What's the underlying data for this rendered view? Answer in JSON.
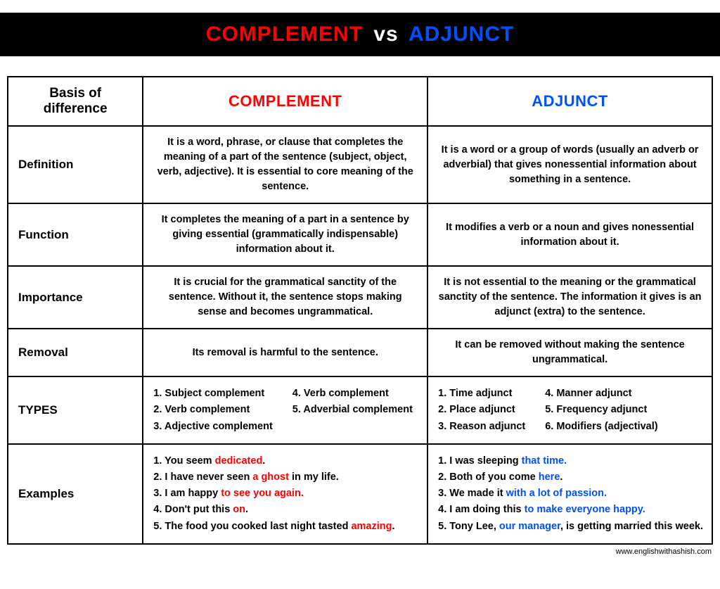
{
  "colors": {
    "red": "#ff0000",
    "blue": "#0050ff",
    "black": "#000000",
    "white": "#ffffff"
  },
  "header": {
    "complement": "COMPLEMENT",
    "vs": "vs",
    "adjunct": "ADJUNCT"
  },
  "table": {
    "head": {
      "basis": "Basis of difference",
      "complement": "COMPLEMENT",
      "adjunct": "ADJUNCT"
    },
    "rows": {
      "definition": {
        "label": "Definition",
        "complement": "It is a word, phrase, or clause that completes the meaning of a part of the sentence (subject, object, verb, adjective). It is essential to core meaning of the sentence.",
        "adjunct": "It is a word or a group of words (usually an adverb or adverbial) that gives nonessential information about something in a sentence."
      },
      "function": {
        "label": "Function",
        "complement": "It completes the meaning of a part in a sentence by giving essential (grammatically indispensable) information about it.",
        "adjunct": "It modifies a verb or a noun and gives nonessential information about it."
      },
      "importance": {
        "label": "Importance",
        "complement": "It is crucial for the grammatical sanctity of the sentence. Without it, the sentence stops making sense and becomes ungrammatical.",
        "adjunct": "It is not essential to the meaning or the grammatical sanctity of the sentence. The information it gives is an adjunct (extra) to the sentence."
      },
      "removal": {
        "label": "Removal",
        "complement": "Its removal is harmful to the sentence.",
        "adjunct": "It can be removed without making the sentence ungrammatical."
      },
      "types": {
        "label": "TYPES",
        "complement": [
          "Subject complement",
          "Verb complement",
          "Adjective complement",
          "Verb complement",
          "Adverbial complement"
        ],
        "adjunct": [
          "Time adjunct",
          "Place adjunct",
          "Reason adjunct",
          "Manner adjunct",
          "Frequency adjunct",
          "Modifiers (adjectival)"
        ]
      },
      "examples": {
        "label": "Examples",
        "complement": [
          {
            "parts": [
              {
                "t": "You seem "
              },
              {
                "t": "dedicated",
                "c": "red"
              },
              {
                "t": "."
              }
            ]
          },
          {
            "parts": [
              {
                "t": "I have never seen "
              },
              {
                "t": "a ghost",
                "c": "red"
              },
              {
                "t": " in my life."
              }
            ]
          },
          {
            "parts": [
              {
                "t": "I am happy "
              },
              {
                "t": "to see you again.",
                "c": "red"
              }
            ]
          },
          {
            "parts": [
              {
                "t": "Don't put this "
              },
              {
                "t": "on",
                "c": "red"
              },
              {
                "t": "."
              }
            ]
          },
          {
            "parts": [
              {
                "t": "The food you cooked last night tasted "
              },
              {
                "t": "amazing",
                "c": "red"
              },
              {
                "t": "."
              }
            ]
          }
        ],
        "adjunct": [
          {
            "parts": [
              {
                "t": "I was sleeping "
              },
              {
                "t": "that time.",
                "c": "blue"
              }
            ]
          },
          {
            "parts": [
              {
                "t": "Both of you come "
              },
              {
                "t": "here",
                "c": "blue"
              },
              {
                "t": "."
              }
            ]
          },
          {
            "parts": [
              {
                "t": "We made it "
              },
              {
                "t": "with a lot of passion.",
                "c": "blue"
              }
            ]
          },
          {
            "parts": [
              {
                "t": "I am doing this "
              },
              {
                "t": "to make everyone happy.",
                "c": "blue"
              }
            ]
          },
          {
            "parts": [
              {
                "t": "Tony Lee, "
              },
              {
                "t": "our manager",
                "c": "blue"
              },
              {
                "t": ", is getting married this week."
              }
            ]
          }
        ]
      }
    }
  },
  "footer": "www.englishwithashish.com"
}
